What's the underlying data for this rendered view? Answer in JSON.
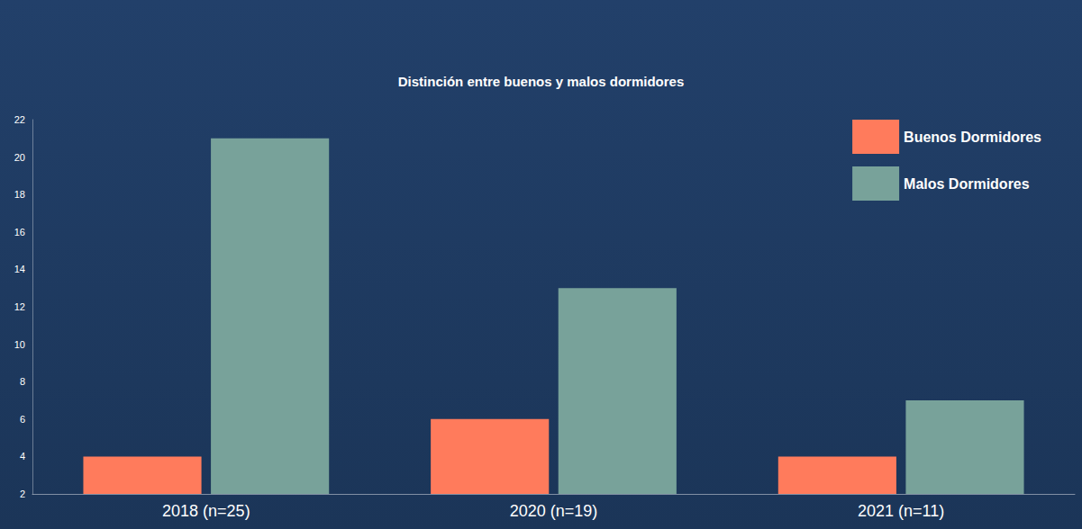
{
  "chart_data": {
    "type": "bar",
    "title": "Distinción entre buenos y malos dormidores",
    "categories": [
      "2018 (n=25)",
      "2020 (n=19)",
      "2021 (n=11)"
    ],
    "series": [
      {
        "name": "Buenos Dormidores",
        "color": "#ff7b5c",
        "values": [
          4,
          6,
          4
        ]
      },
      {
        "name": "Malos Dormidores",
        "color": "#78a29a",
        "values": [
          21,
          13,
          7
        ]
      }
    ],
    "ylim": [
      2,
      22
    ],
    "yticks": [
      2,
      4,
      6,
      8,
      10,
      12,
      14,
      16,
      18,
      20,
      22
    ],
    "grid": false,
    "legend": "top-right"
  }
}
